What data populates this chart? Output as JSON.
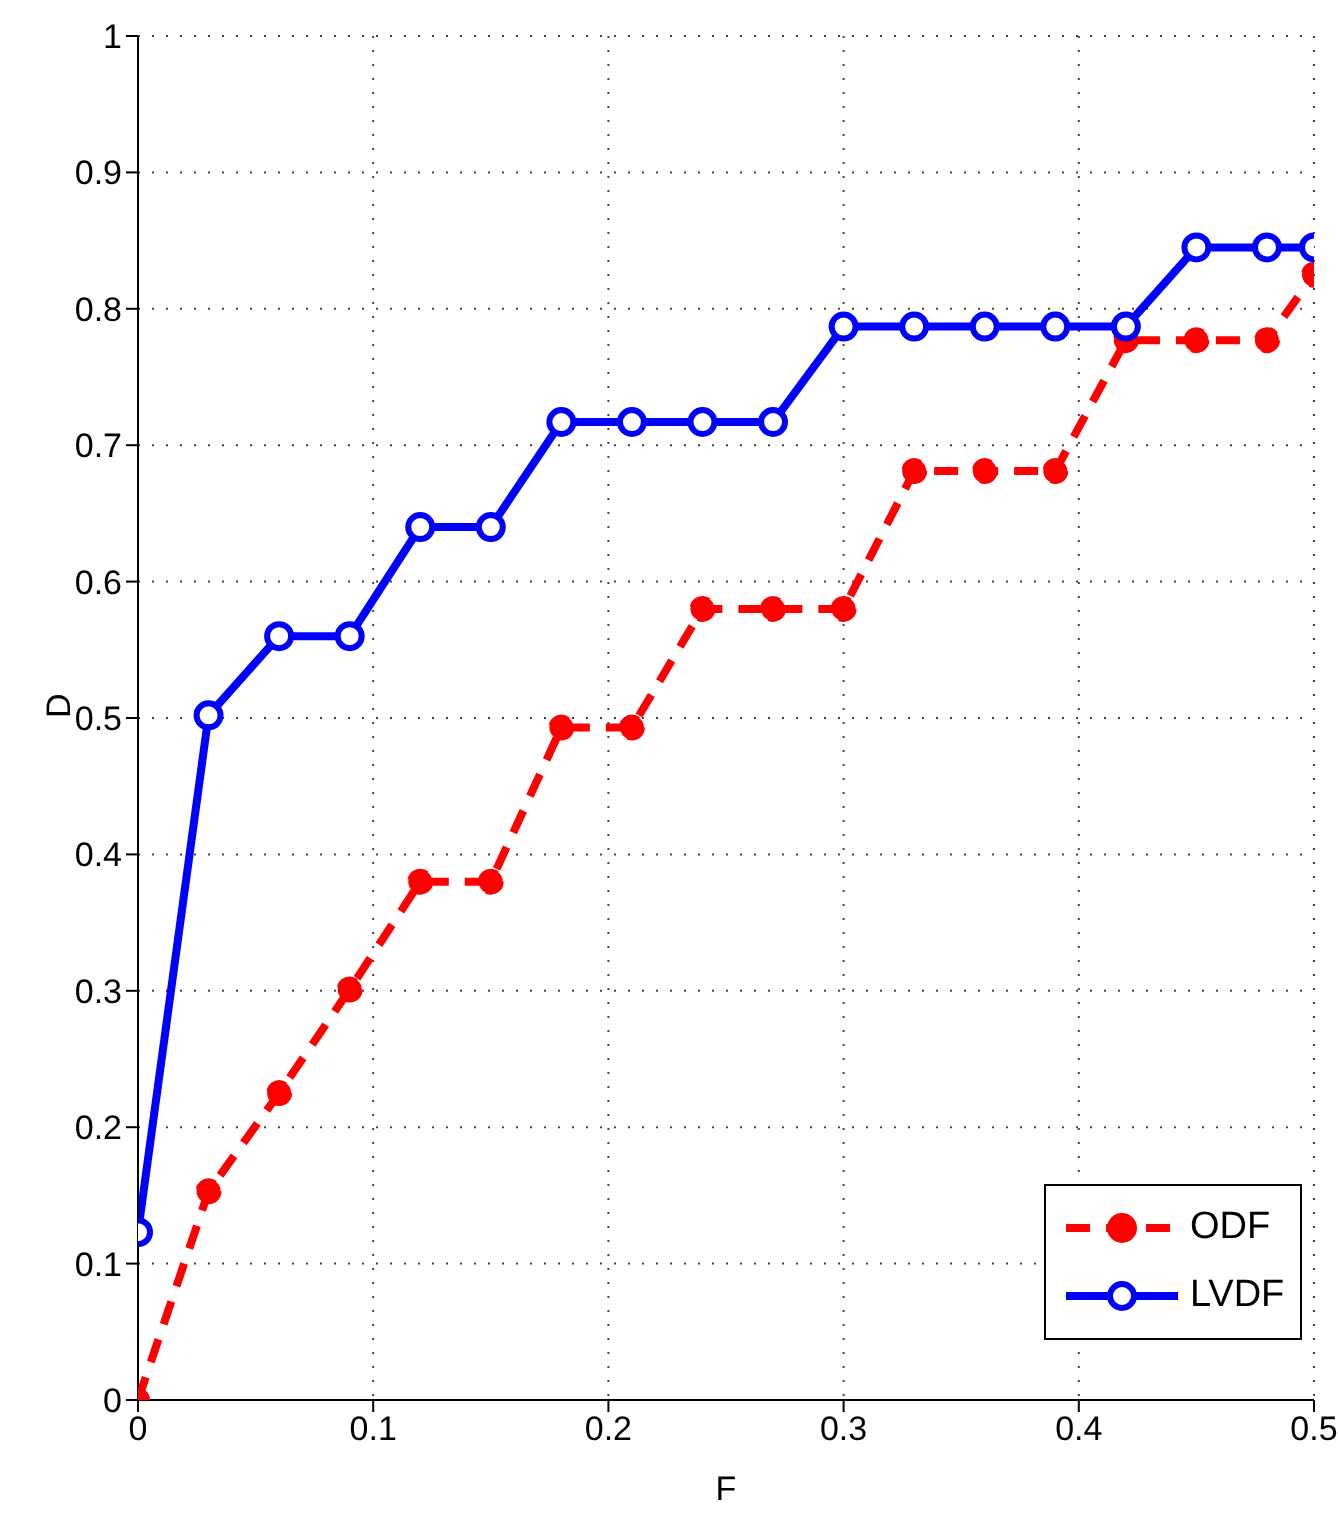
{
  "chart_data": {
    "type": "line",
    "xlabel": "F",
    "ylabel": "D",
    "x": [
      0,
      0.03,
      0.06,
      0.09,
      0.12,
      0.15,
      0.18,
      0.21,
      0.24,
      0.27,
      0.3,
      0.33,
      0.36,
      0.39,
      0.42,
      0.45,
      0.48,
      0.5
    ],
    "series": [
      {
        "name": "ODF",
        "color": "#ff0000",
        "line_style": "dashed",
        "marker": "circle",
        "values": [
          0,
          0.153,
          0.225,
          0.301,
          0.38,
          0.38,
          0.493,
          0.493,
          0.58,
          0.58,
          0.58,
          0.681,
          0.681,
          0.681,
          0.777,
          0.777,
          0.777,
          0.825
        ]
      },
      {
        "name": "LVDF",
        "color": "#0000ff",
        "line_style": "solid",
        "marker": "open circle",
        "values": [
          0.123,
          0.502,
          0.56,
          0.56,
          0.64,
          0.64,
          0.717,
          0.717,
          0.717,
          0.717,
          0.787,
          0.787,
          0.787,
          0.787,
          0.787,
          0.845,
          0.845,
          0.845
        ]
      }
    ],
    "xlim": [
      0,
      0.5
    ],
    "xticks": [
      0,
      0.1,
      0.2,
      0.3,
      0.4,
      0.5
    ],
    "ylim": [
      0,
      1
    ],
    "yticks": [
      0,
      0.1,
      0.2,
      0.3,
      0.4,
      0.5,
      0.6,
      0.7,
      0.8,
      0.9,
      1
    ],
    "grid": true,
    "legend": "bottom right"
  }
}
